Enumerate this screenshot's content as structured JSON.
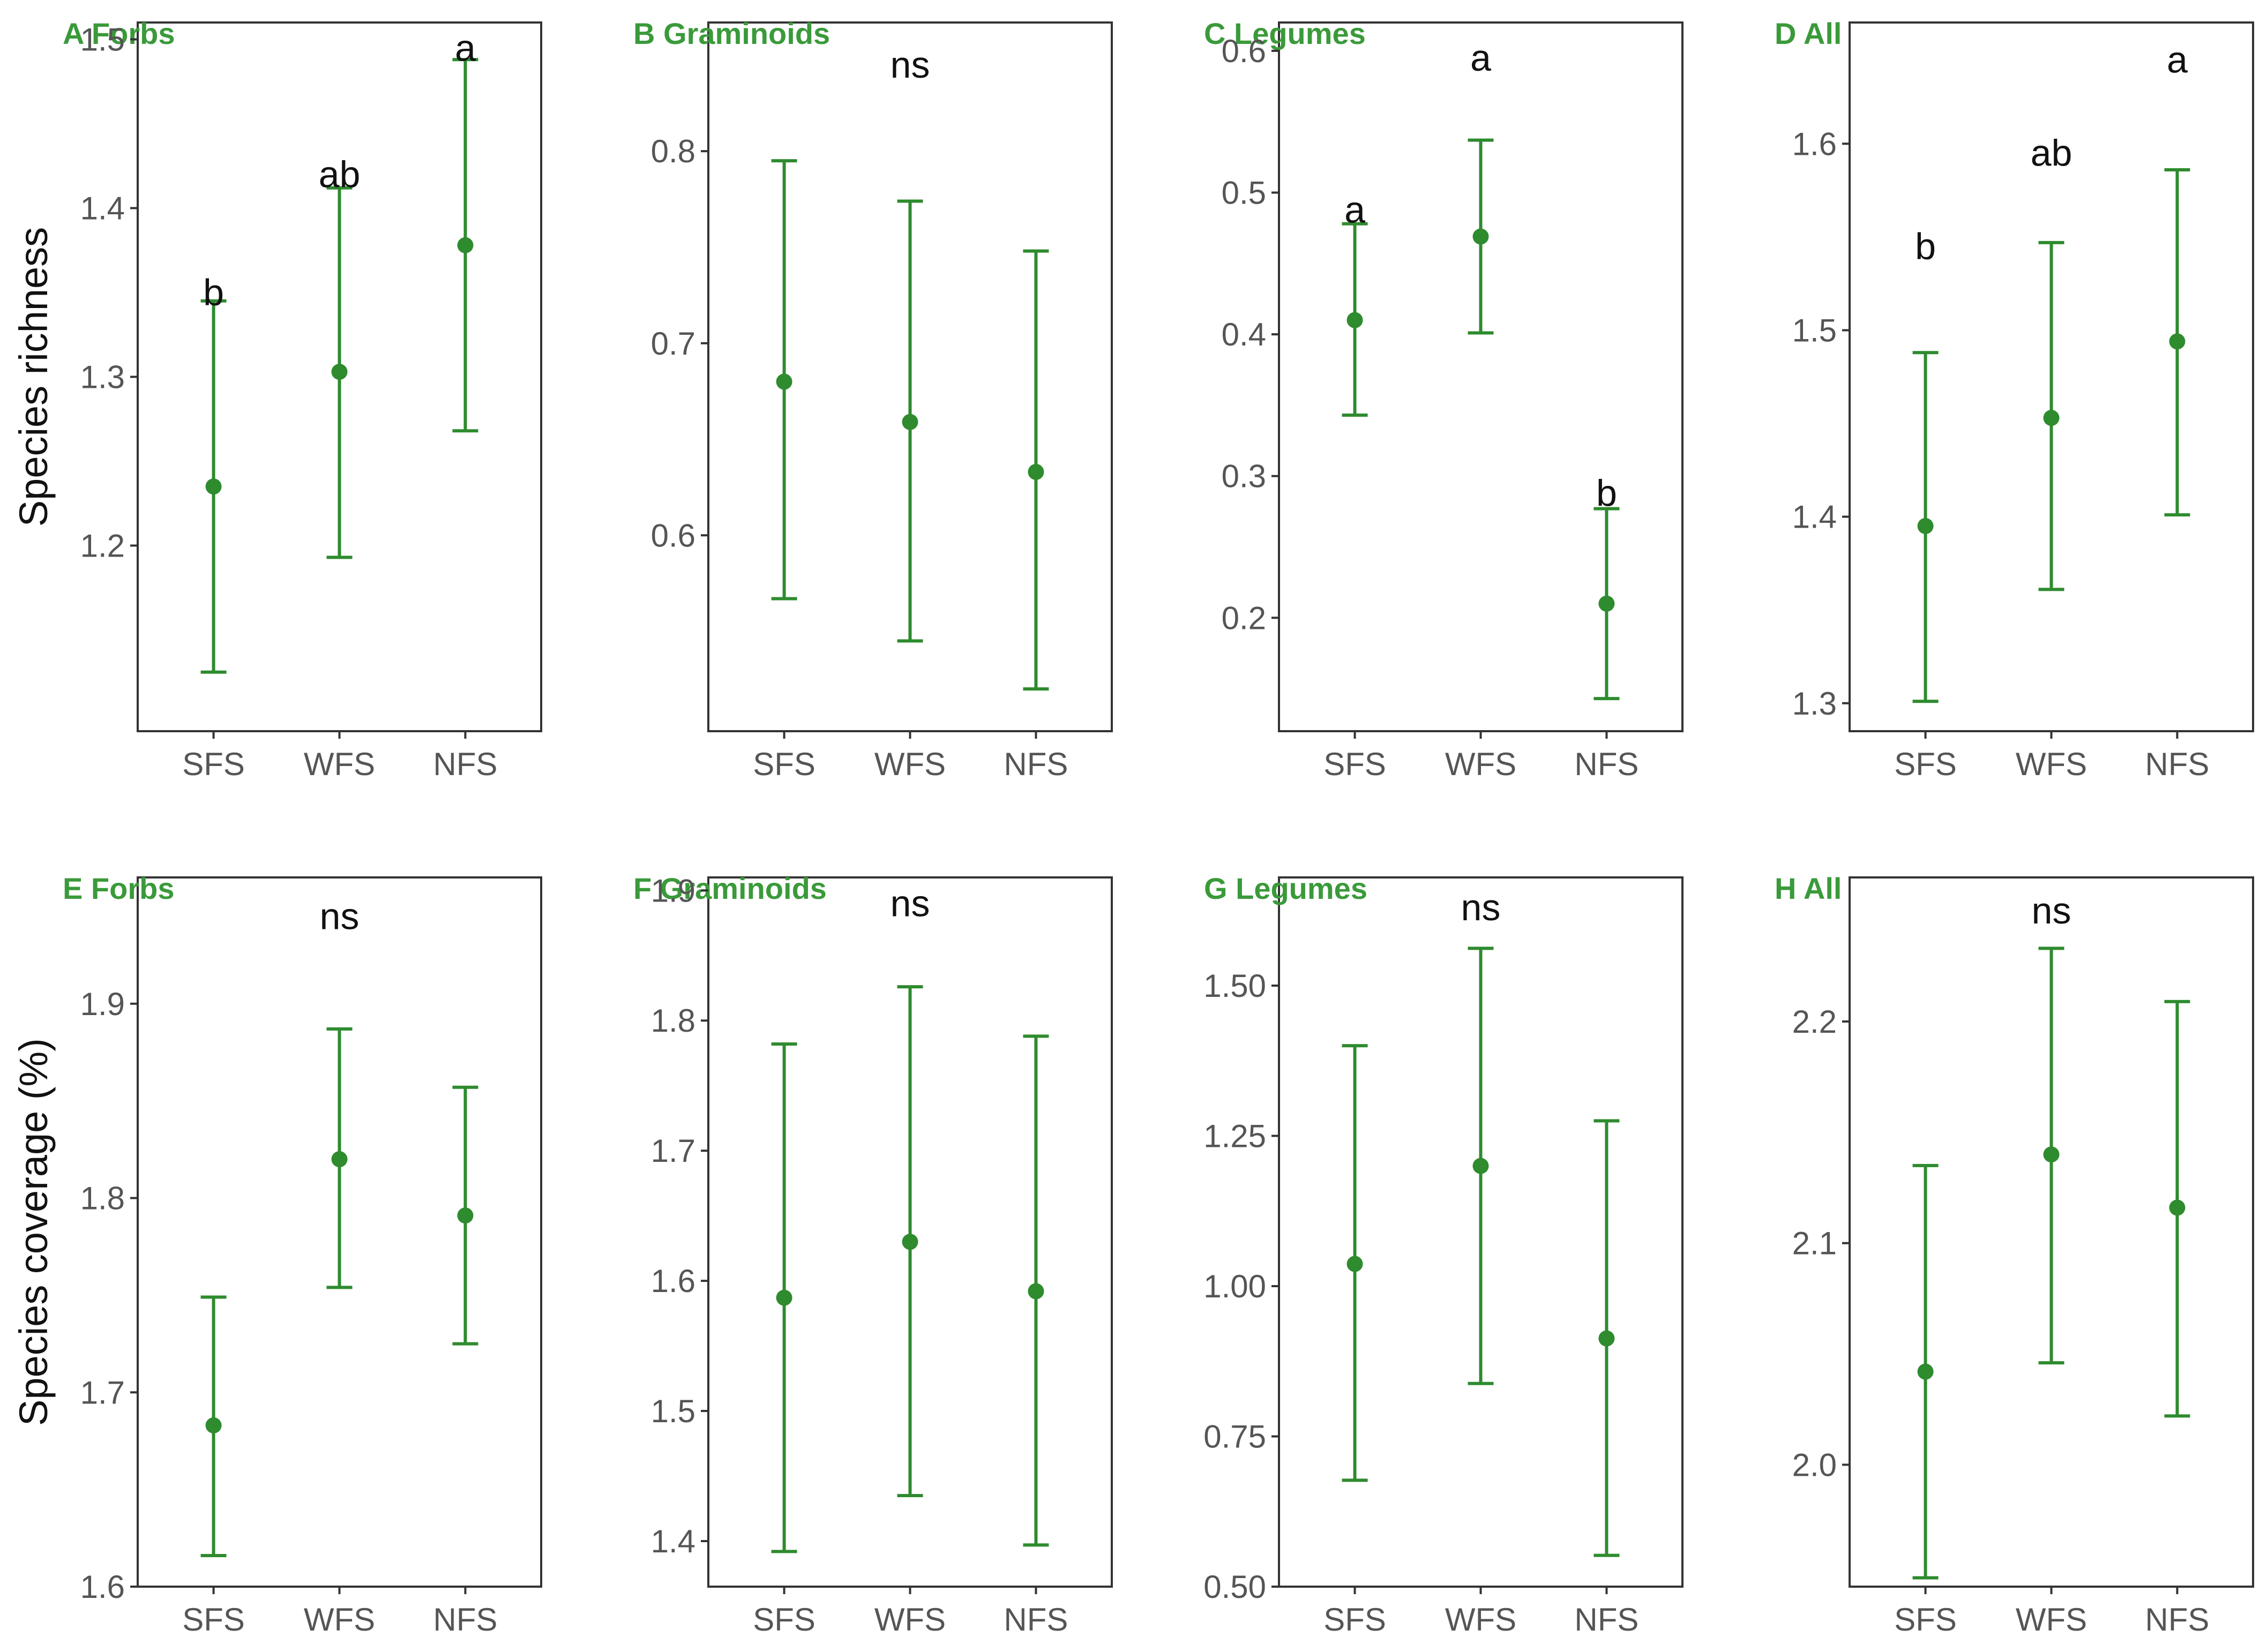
{
  "colors": {
    "accent": "#2e8b2e",
    "title": "#3a9a3a",
    "axis": "#333333"
  },
  "chart_data": [
    {
      "type": "scatter",
      "panel": "A",
      "title": "A Forbs",
      "ylabel": "Species richness",
      "categories": [
        "SFS",
        "WFS",
        "NFS"
      ],
      "mean": [
        1.235,
        1.303,
        1.378
      ],
      "lower": [
        1.125,
        1.193,
        1.268
      ],
      "upper": [
        1.345,
        1.412,
        1.488
      ],
      "sig": [
        "b",
        "ab",
        "a"
      ],
      "sig_y": [
        1.35,
        1.42,
        1.495
      ],
      "ylim": [
        1.09,
        1.51
      ],
      "yticks": [
        1.2,
        1.3,
        1.4,
        1.5
      ],
      "tick_labels": [
        "1.2",
        "1.3",
        "1.4",
        "1.5"
      ]
    },
    {
      "type": "scatter",
      "panel": "B",
      "title": "B Graminoids",
      "ylabel": "",
      "categories": [
        "SFS",
        "WFS",
        "NFS"
      ],
      "mean": [
        0.68,
        0.659,
        0.633
      ],
      "lower": [
        0.567,
        0.545,
        0.52
      ],
      "upper": [
        0.795,
        0.774,
        0.748
      ],
      "sig": [
        "ns"
      ],
      "sig_y": [
        0.845
      ],
      "ylim": [
        0.498,
        0.867
      ],
      "yticks": [
        0.6,
        0.7,
        0.8
      ],
      "tick_labels": [
        "0.6",
        "0.7",
        "0.8"
      ]
    },
    {
      "type": "scatter",
      "panel": "C",
      "title": "C Legumes",
      "ylabel": "",
      "categories": [
        "SFS",
        "WFS",
        "NFS"
      ],
      "mean": [
        0.41,
        0.469,
        0.21
      ],
      "lower": [
        0.343,
        0.401,
        0.143
      ],
      "upper": [
        0.478,
        0.537,
        0.277
      ],
      "sig": [
        "a",
        "a",
        "b"
      ],
      "sig_y": [
        0.488,
        0.595,
        0.288
      ],
      "ylim": [
        0.12,
        0.62
      ],
      "yticks": [
        0.2,
        0.3,
        0.4,
        0.5,
        0.6
      ],
      "tick_labels": [
        "0.2",
        "0.3",
        "0.4",
        "0.5",
        "0.6"
      ]
    },
    {
      "type": "scatter",
      "panel": "D",
      "title": "D All",
      "ylabel": "",
      "categories": [
        "SFS",
        "WFS",
        "NFS"
      ],
      "mean": [
        1.395,
        1.453,
        1.494
      ],
      "lower": [
        1.301,
        1.361,
        1.401
      ],
      "upper": [
        1.488,
        1.547,
        1.586
      ],
      "sig": [
        "b",
        "ab",
        "a"
      ],
      "sig_y": [
        1.545,
        1.595,
        1.645
      ],
      "ylim": [
        1.285,
        1.665
      ],
      "yticks": [
        1.3,
        1.4,
        1.5,
        1.6
      ],
      "tick_labels": [
        "1.3",
        "1.4",
        "1.5",
        "1.6"
      ]
    },
    {
      "type": "scatter",
      "panel": "E",
      "title": "E Forbs",
      "ylabel": "Species coverage (%)",
      "categories": [
        "SFS",
        "WFS",
        "NFS"
      ],
      "mean": [
        1.683,
        1.82,
        1.791
      ],
      "lower": [
        1.616,
        1.754,
        1.725
      ],
      "upper": [
        1.749,
        1.887,
        1.857
      ],
      "sig": [
        "ns"
      ],
      "sig_y": [
        1.945
      ],
      "ylim": [
        1.6,
        1.965
      ],
      "yticks": [
        1.6,
        1.7,
        1.8,
        1.9
      ],
      "tick_labels": [
        "1.6",
        "1.7",
        "1.8",
        "1.9"
      ]
    },
    {
      "type": "scatter",
      "panel": "F",
      "title": "F Graminoids",
      "ylabel": "",
      "categories": [
        "SFS",
        "WFS",
        "NFS"
      ],
      "mean": [
        1.587,
        1.63,
        1.592
      ],
      "lower": [
        1.392,
        1.435,
        1.397
      ],
      "upper": [
        1.782,
        1.826,
        1.788
      ],
      "sig": [
        "ns"
      ],
      "sig_y": [
        1.89
      ],
      "ylim": [
        1.365,
        1.91
      ],
      "yticks": [
        1.4,
        1.5,
        1.6,
        1.7,
        1.8,
        1.9
      ],
      "tick_labels": [
        "1.4",
        "1.5",
        "1.6",
        "1.7",
        "1.8",
        "1.9"
      ]
    },
    {
      "type": "scatter",
      "panel": "G",
      "title": "G Legumes",
      "ylabel": "",
      "categories": [
        "SFS",
        "WFS",
        "NFS"
      ],
      "mean": [
        1.037,
        1.2,
        0.913
      ],
      "lower": [
        0.677,
        0.838,
        0.552
      ],
      "upper": [
        1.4,
        1.562,
        1.275
      ],
      "sig": [
        "ns"
      ],
      "sig_y": [
        1.63
      ],
      "ylim": [
        0.5,
        1.68
      ],
      "yticks": [
        0.5,
        0.75,
        1.0,
        1.25,
        1.5
      ],
      "tick_labels": [
        "0.50",
        "0.75",
        "1.00",
        "1.25",
        "1.50"
      ]
    },
    {
      "type": "scatter",
      "panel": "H",
      "title": "H All",
      "ylabel": "",
      "categories": [
        "SFS",
        "WFS",
        "NFS"
      ],
      "mean": [
        2.042,
        2.14,
        2.116
      ],
      "lower": [
        1.949,
        2.046,
        2.022
      ],
      "upper": [
        2.135,
        2.233,
        2.209
      ],
      "sig": [
        "ns"
      ],
      "sig_y": [
        2.25
      ],
      "ylim": [
        1.945,
        2.265
      ],
      "yticks": [
        2.0,
        2.1,
        2.2
      ],
      "tick_labels": [
        "2.0",
        "2.1",
        "2.2"
      ]
    }
  ]
}
